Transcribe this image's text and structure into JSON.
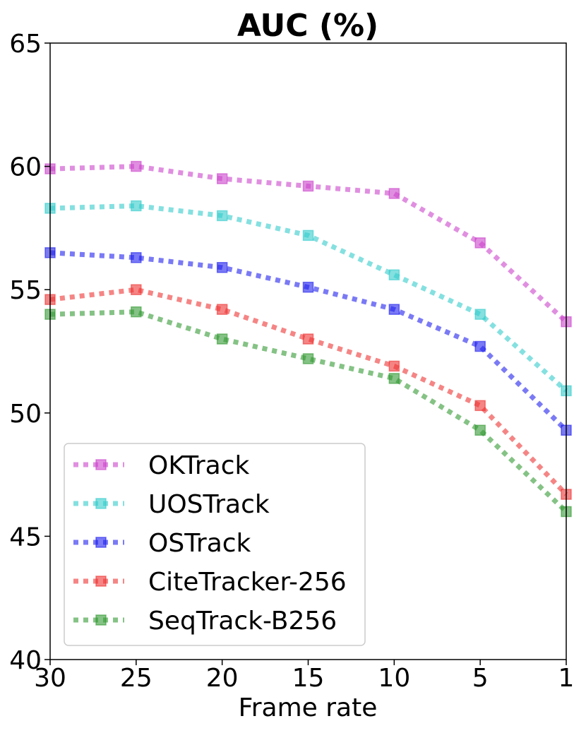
{
  "chart_data": {
    "type": "line",
    "title": "AUC (%)",
    "xlabel": "Frame rate",
    "ylabel": "",
    "x": [
      30,
      25,
      20,
      15,
      10,
      5,
      1
    ],
    "x_tick_labels": [
      "30",
      "25",
      "20",
      "15",
      "10",
      "5",
      "1"
    ],
    "xlim": [
      30,
      1
    ],
    "ylim": [
      40,
      65
    ],
    "y_ticks": [
      40,
      45,
      50,
      55,
      60,
      65
    ],
    "y_tick_labels": [
      "40",
      "45",
      "50",
      "55",
      "60",
      "65"
    ],
    "grid": false,
    "legend_position": "lower-left",
    "series": [
      {
        "name": "OKTrack",
        "color": "#cc44cc",
        "values": [
          59.9,
          60.0,
          59.5,
          59.2,
          58.9,
          56.9,
          53.7
        ]
      },
      {
        "name": "UOSTrack",
        "color": "#33cccc",
        "values": [
          58.3,
          58.4,
          58.0,
          57.2,
          55.6,
          54.0,
          50.9
        ]
      },
      {
        "name": "OSTrack",
        "color": "#2222ee",
        "values": [
          56.5,
          56.3,
          55.9,
          55.1,
          54.2,
          52.7,
          49.3
        ]
      },
      {
        "name": "CiteTracker-256",
        "color": "#ee3333",
        "values": [
          54.6,
          55.0,
          54.2,
          53.0,
          51.9,
          50.3,
          46.7
        ]
      },
      {
        "name": "SeqTrack-B256",
        "color": "#339933",
        "values": [
          54.0,
          54.1,
          53.0,
          52.2,
          51.4,
          49.3,
          46.0
        ]
      }
    ]
  }
}
